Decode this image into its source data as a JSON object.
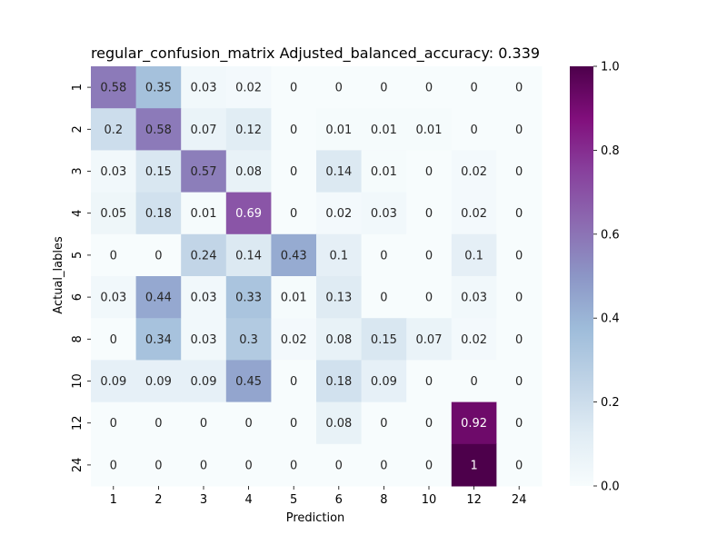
{
  "chart_data": {
    "type": "heatmap",
    "title": "regular_confusion_matrix Adjusted_balanced_accuracy: 0.339",
    "xlabel": "Prediction",
    "ylabel": "Actual_lables",
    "x_categories": [
      "1",
      "2",
      "3",
      "4",
      "5",
      "6",
      "8",
      "10",
      "12",
      "24"
    ],
    "y_categories": [
      "1",
      "2",
      "3",
      "4",
      "5",
      "6",
      "8",
      "10",
      "12",
      "24"
    ],
    "values": [
      [
        0.58,
        0.35,
        0.03,
        0.02,
        0,
        0,
        0,
        0,
        0,
        0
      ],
      [
        0.2,
        0.58,
        0.07,
        0.12,
        0,
        0.01,
        0.01,
        0.01,
        0,
        0
      ],
      [
        0.03,
        0.15,
        0.57,
        0.08,
        0,
        0.14,
        0.01,
        0,
        0.02,
        0
      ],
      [
        0.05,
        0.18,
        0.01,
        0.69,
        0,
        0.02,
        0.03,
        0,
        0.02,
        0
      ],
      [
        0,
        0,
        0.24,
        0.14,
        0.43,
        0.1,
        0,
        0,
        0.1,
        0
      ],
      [
        0.03,
        0.44,
        0.03,
        0.33,
        0.01,
        0.13,
        0,
        0,
        0.03,
        0
      ],
      [
        0,
        0.34,
        0.03,
        0.3,
        0.02,
        0.08,
        0.15,
        0.07,
        0.02,
        0
      ],
      [
        0.09,
        0.09,
        0.09,
        0.45,
        0,
        0.18,
        0.09,
        0,
        0,
        0
      ],
      [
        0,
        0,
        0,
        0,
        0,
        0.08,
        0,
        0,
        0.92,
        0
      ],
      [
        0,
        0,
        0,
        0,
        0,
        0,
        0,
        0,
        1,
        0
      ]
    ],
    "colormap": "BuPu",
    "colorbar": {
      "range": [
        0.0,
        1.0
      ],
      "ticks": [
        "0.0",
        "0.2",
        "0.4",
        "0.6",
        "0.8",
        "1.0"
      ]
    },
    "annotations": true
  }
}
